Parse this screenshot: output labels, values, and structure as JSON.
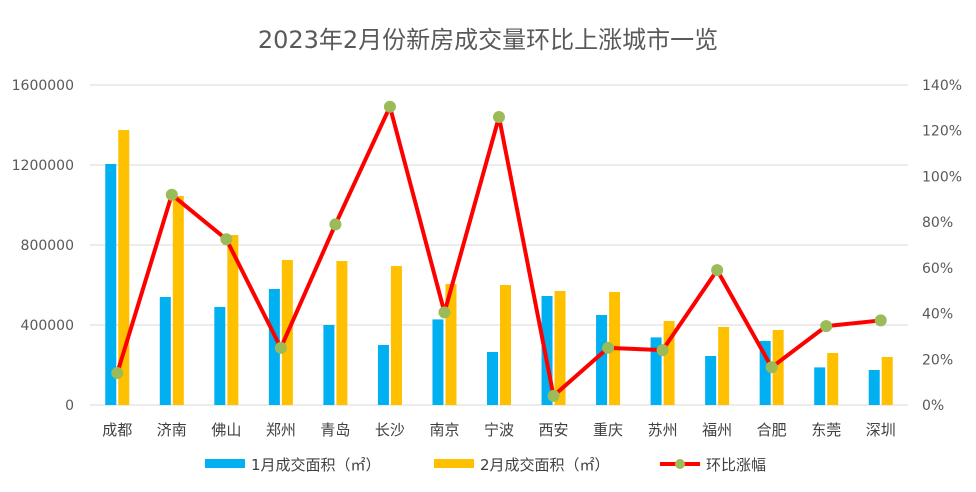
{
  "chart_data": {
    "type": "bar",
    "title": "2023年2月份新房成交量环比上涨城市一览",
    "categories": [
      "成都",
      "济南",
      "佛山",
      "郑州",
      "青岛",
      "长沙",
      "南京",
      "宁波",
      "西安",
      "重庆",
      "苏州",
      "福州",
      "合肥",
      "东莞",
      "深圳"
    ],
    "series": [
      {
        "name": "1月成交面积（㎡）",
        "type": "bar",
        "axis": "left",
        "color": "#00b0f0",
        "values": [
          1205000,
          540000,
          490000,
          580000,
          400000,
          300000,
          428000,
          265000,
          545000,
          450000,
          338000,
          245000,
          320000,
          188000,
          175000
        ]
      },
      {
        "name": "2月成交面积（㎡）",
        "type": "bar",
        "axis": "left",
        "color": "#ffc000",
        "values": [
          1375000,
          1045000,
          850000,
          725000,
          720000,
          695000,
          605000,
          600000,
          570000,
          565000,
          420000,
          390000,
          375000,
          260000,
          240000
        ]
      },
      {
        "name": "环比涨幅",
        "type": "line",
        "axis": "right",
        "color": "#ff0000",
        "marker_color": "#9bbb59",
        "values": [
          0.14,
          0.92,
          0.725,
          0.25,
          0.79,
          1.305,
          0.405,
          1.26,
          0.04,
          0.25,
          0.24,
          0.59,
          0.165,
          0.345,
          0.37
        ]
      }
    ],
    "y_left": {
      "ylim": [
        0,
        1600000
      ],
      "ticks": [
        "0",
        "400000",
        "800000",
        "1200000",
        "1600000"
      ]
    },
    "y_right": {
      "ylim": [
        0,
        1.4
      ],
      "ticks": [
        "0%",
        "20%",
        "40%",
        "60%",
        "80%",
        "100%",
        "120%",
        "140%"
      ]
    },
    "grid": true,
    "legend": "bottom"
  }
}
